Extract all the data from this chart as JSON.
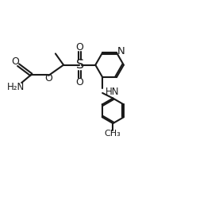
{
  "background_color": "#ffffff",
  "line_color": "#1a1a1a",
  "line_width": 1.5,
  "font_size": 8.5,
  "xlim": [
    0,
    2.6
  ],
  "ylim": [
    -0.55,
    1.05
  ],
  "figsize": [
    2.66,
    2.59
  ],
  "dpi": 100
}
